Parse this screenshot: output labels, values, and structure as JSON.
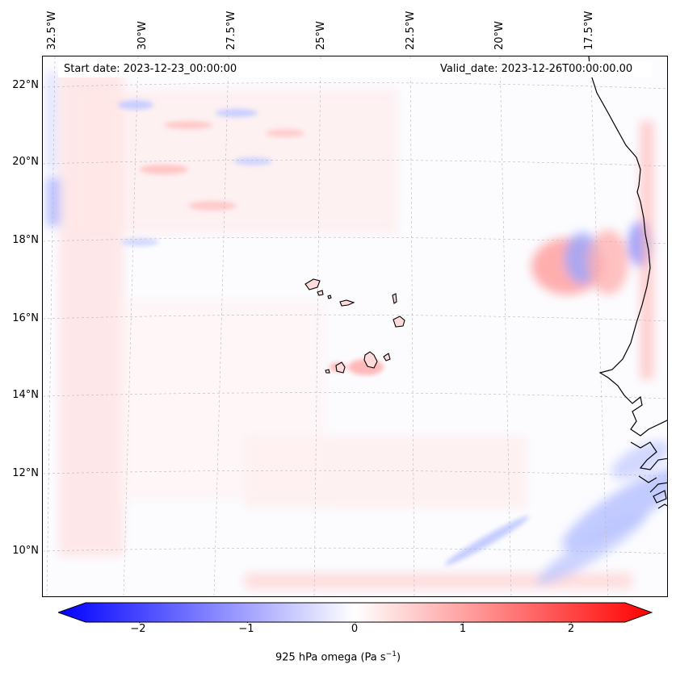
{
  "info": {
    "start_date": "Start date: 2023-12-23_00:00:00",
    "valid_date": "Valid_date: 2023-12-26T00:00:00.00"
  },
  "axes": {
    "lat_labels": [
      "22°N",
      "20°N",
      "18°N",
      "16°N",
      "14°N",
      "12°N",
      "10°N"
    ],
    "lon_labels": [
      "32.5°W",
      "30°W",
      "27.5°W",
      "25°W",
      "22.5°W",
      "20°W",
      "17.5°W"
    ]
  },
  "colorbar": {
    "label_prefix": "925 hPa omega (Pa s",
    "label_exp": "−1",
    "label_suffix": ")",
    "ticks": [
      "−2",
      "−1",
      "0",
      "1",
      "2"
    ],
    "vmin": -2.5,
    "vmax": 2.5,
    "low_color": "#0000ff",
    "mid_color": "#ffffff",
    "high_color": "#ff0000"
  },
  "map": {
    "projection_extent": {
      "lon_min": -33.0,
      "lon_max": -16.0,
      "lat_min": 9.0,
      "lat_max": 22.7
    },
    "coastline_color": "#000000",
    "gridline_color": "#b0b0b0"
  }
}
